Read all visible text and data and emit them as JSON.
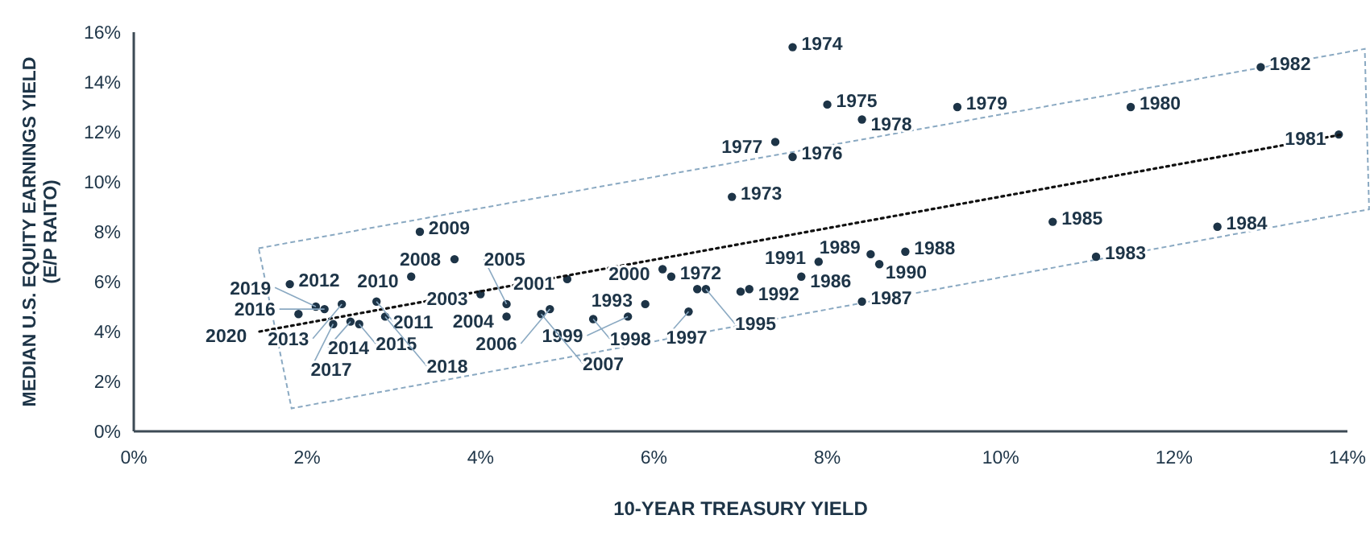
{
  "chart_data": {
    "type": "scatter",
    "xlabel": "10-YEAR TREASURY YIELD",
    "ylabel": "MEDIAN U.S. EQUITY EARNINGS YIELD\n(E/P RAITO)",
    "xlim": [
      0,
      14
    ],
    "ylim": [
      0,
      16
    ],
    "xticks": [
      {
        "value": 0,
        "label": "0%"
      },
      {
        "value": 2,
        "label": "2%"
      },
      {
        "value": 4,
        "label": "4%"
      },
      {
        "value": 6,
        "label": "6%"
      },
      {
        "value": 8,
        "label": "8%"
      },
      {
        "value": 10,
        "label": "10%"
      },
      {
        "value": 12,
        "label": "12%"
      },
      {
        "value": 14,
        "label": "14%"
      }
    ],
    "yticks": [
      {
        "value": 0,
        "label": "0%"
      },
      {
        "value": 2,
        "label": "2%"
      },
      {
        "value": 4,
        "label": "4%"
      },
      {
        "value": 6,
        "label": "6%"
      },
      {
        "value": 8,
        "label": "8%"
      },
      {
        "value": 10,
        "label": "10%"
      },
      {
        "value": 12,
        "label": "12%"
      },
      {
        "value": 14,
        "label": "14%"
      },
      {
        "value": 16,
        "label": "16%"
      }
    ],
    "grid": false,
    "line_style": "dotted",
    "series": [
      {
        "marker": "circle",
        "color": "#1d3447",
        "x": [
          6.2,
          6.9,
          7.6,
          8.0,
          7.6,
          7.4,
          8.4,
          9.5,
          11.5,
          13.9,
          13.0,
          11.1,
          12.5,
          10.6,
          7.7,
          8.4,
          8.9,
          8.5,
          8.6,
          7.9,
          7.1,
          7.0,
          5.9,
          6.5,
          6.6,
          6.4,
          5.3,
          5.7,
          6.1,
          5.0,
          4.0,
          4.3,
          4.3,
          4.8,
          4.7,
          3.7,
          3.3,
          3.2,
          2.8,
          1.8,
          2.4,
          2.5,
          2.6,
          2.2,
          2.3,
          2.9,
          2.1,
          1.9
        ],
        "values": [
          6.2,
          9.4,
          15.4,
          13.1,
          11.0,
          11.6,
          12.5,
          13.0,
          13.0,
          11.9,
          14.6,
          7.0,
          8.2,
          8.4,
          6.2,
          5.2,
          7.2,
          7.1,
          6.7,
          6.8,
          5.7,
          5.6,
          5.1,
          5.7,
          5.7,
          4.8,
          4.5,
          4.6,
          6.5,
          6.1,
          5.5,
          4.6,
          5.1,
          4.9,
          4.7,
          6.9,
          8.0,
          6.2,
          5.2,
          5.9,
          5.1,
          4.4,
          4.3,
          4.9,
          4.3,
          4.6,
          5.0,
          4.7
        ]
      },
      {
        "type": "line",
        "color": "#111111",
        "x": [
          1.45,
          13.94
        ],
        "values": [
          4.0,
          11.9
        ]
      }
    ],
    "annotations": [
      {
        "text": "1972",
        "x": 6.2,
        "y": 6.2
      },
      {
        "text": "1973",
        "x": 6.9,
        "y": 9.4
      },
      {
        "text": "1974",
        "x": 7.6,
        "y": 15.4
      },
      {
        "text": "1975",
        "x": 8.0,
        "y": 13.1
      },
      {
        "text": "1976",
        "x": 7.6,
        "y": 11.0
      },
      {
        "text": "1977",
        "x": 7.4,
        "y": 11.6
      },
      {
        "text": "1978",
        "x": 8.4,
        "y": 12.5
      },
      {
        "text": "1979",
        "x": 9.5,
        "y": 13.0
      },
      {
        "text": "1980",
        "x": 11.5,
        "y": 13.0
      },
      {
        "text": "1981",
        "x": 13.9,
        "y": 11.9
      },
      {
        "text": "1982",
        "x": 13.0,
        "y": 14.6
      },
      {
        "text": "1983",
        "x": 11.1,
        "y": 7.0
      },
      {
        "text": "1984",
        "x": 12.5,
        "y": 8.2
      },
      {
        "text": "1985",
        "x": 10.6,
        "y": 8.4
      },
      {
        "text": "1986",
        "x": 7.7,
        "y": 6.2
      },
      {
        "text": "1987",
        "x": 8.4,
        "y": 5.2
      },
      {
        "text": "1988",
        "x": 8.9,
        "y": 7.2
      },
      {
        "text": "1989",
        "x": 8.5,
        "y": 7.1
      },
      {
        "text": "1990",
        "x": 8.6,
        "y": 6.7
      },
      {
        "text": "1991",
        "x": 7.9,
        "y": 6.8
      },
      {
        "text": "1992",
        "x": 7.1,
        "y": 5.7
      },
      {
        "text": "1993",
        "x": 5.9,
        "y": 5.1
      },
      {
        "text": "1995",
        "x": 6.6,
        "y": 5.7
      },
      {
        "text": "1997",
        "x": 6.4,
        "y": 4.8
      },
      {
        "text": "1998",
        "x": 5.3,
        "y": 4.5
      },
      {
        "text": "1999",
        "x": 5.7,
        "y": 4.6
      },
      {
        "text": "2000",
        "x": 6.1,
        "y": 6.5
      },
      {
        "text": "2001",
        "x": 5.0,
        "y": 6.1
      },
      {
        "text": "2003",
        "x": 4.0,
        "y": 5.5
      },
      {
        "text": "2004",
        "x": 4.3,
        "y": 4.6
      },
      {
        "text": "2005",
        "x": 4.3,
        "y": 5.1
      },
      {
        "text": "2006",
        "x": 4.8,
        "y": 4.9
      },
      {
        "text": "2007",
        "x": 4.7,
        "y": 4.7
      },
      {
        "text": "2008",
        "x": 3.7,
        "y": 6.9
      },
      {
        "text": "2009",
        "x": 3.3,
        "y": 8.0
      },
      {
        "text": "2010",
        "x": 3.2,
        "y": 6.2
      },
      {
        "text": "2011",
        "x": 2.8,
        "y": 5.2
      },
      {
        "text": "2012",
        "x": 1.8,
        "y": 5.9
      },
      {
        "text": "2013",
        "x": 2.4,
        "y": 5.1
      },
      {
        "text": "2014",
        "x": 2.5,
        "y": 4.4
      },
      {
        "text": "2015",
        "x": 2.6,
        "y": 4.3
      },
      {
        "text": "2016",
        "x": 2.2,
        "y": 4.9
      },
      {
        "text": "2017",
        "x": 2.3,
        "y": 4.3
      },
      {
        "text": "2018",
        "x": 2.9,
        "y": 4.6
      },
      {
        "text": "2019",
        "x": 2.1,
        "y": 5.0
      },
      {
        "text": "2020",
        "x": 1.45,
        "y": 4.0
      }
    ]
  }
}
